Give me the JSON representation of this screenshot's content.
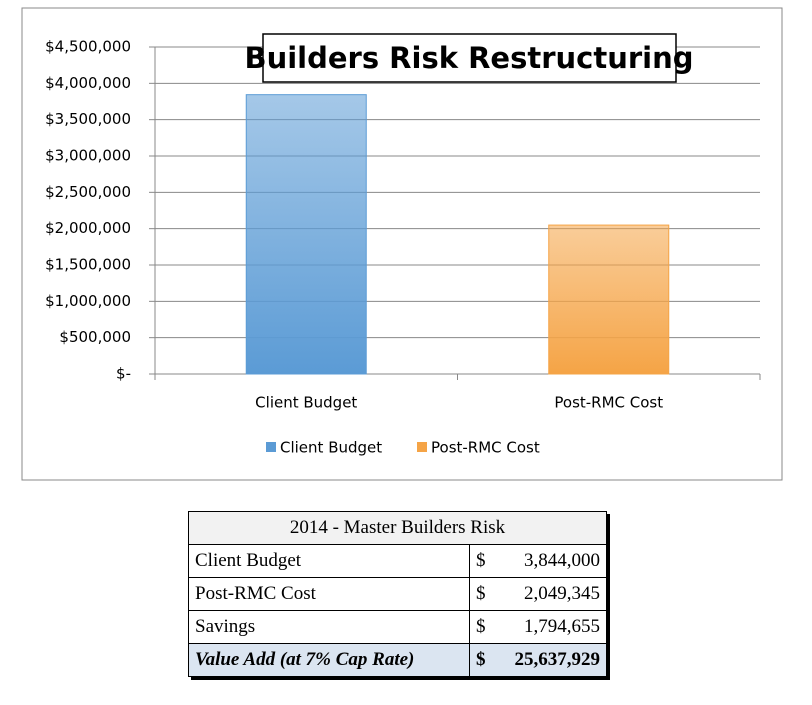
{
  "chart_data": {
    "type": "bar",
    "title": "Builders Risk Restructuring",
    "categories": [
      "Client Budget",
      "Post-RMC Cost"
    ],
    "series": [
      {
        "name": "Client Budget",
        "color": "#5b9bd5",
        "values": [
          3844000,
          null
        ]
      },
      {
        "name": "Post-RMC Cost",
        "color": "#f5a446",
        "values": [
          null,
          2049345
        ]
      }
    ],
    "ylim": [
      0,
      4500000
    ],
    "yticks": [
      {
        "value": 0,
        "label": "$-"
      },
      {
        "value": 500000,
        "label": "$500,000"
      },
      {
        "value": 1000000,
        "label": "$1,000,000"
      },
      {
        "value": 1500000,
        "label": "$1,500,000"
      },
      {
        "value": 2000000,
        "label": "$2,000,000"
      },
      {
        "value": 2500000,
        "label": "$2,500,000"
      },
      {
        "value": 3000000,
        "label": "$3,000,000"
      },
      {
        "value": 3500000,
        "label": "$3,500,000"
      },
      {
        "value": 4000000,
        "label": "$4,000,000"
      },
      {
        "value": 4500000,
        "label": "$4,500,000"
      }
    ],
    "grid": true,
    "legend": "bottom"
  },
  "table": {
    "title": "2014 - Master Builders Risk",
    "rows": [
      [
        "Client Budget",
        "$",
        "3,844,000"
      ],
      [
        "Post-RMC Cost",
        "$",
        "2,049,345"
      ],
      [
        "Savings",
        "$",
        "1,794,655"
      ],
      [
        "Value Add (at 7% Cap Rate)",
        "$",
        "25,637,929"
      ]
    ]
  }
}
